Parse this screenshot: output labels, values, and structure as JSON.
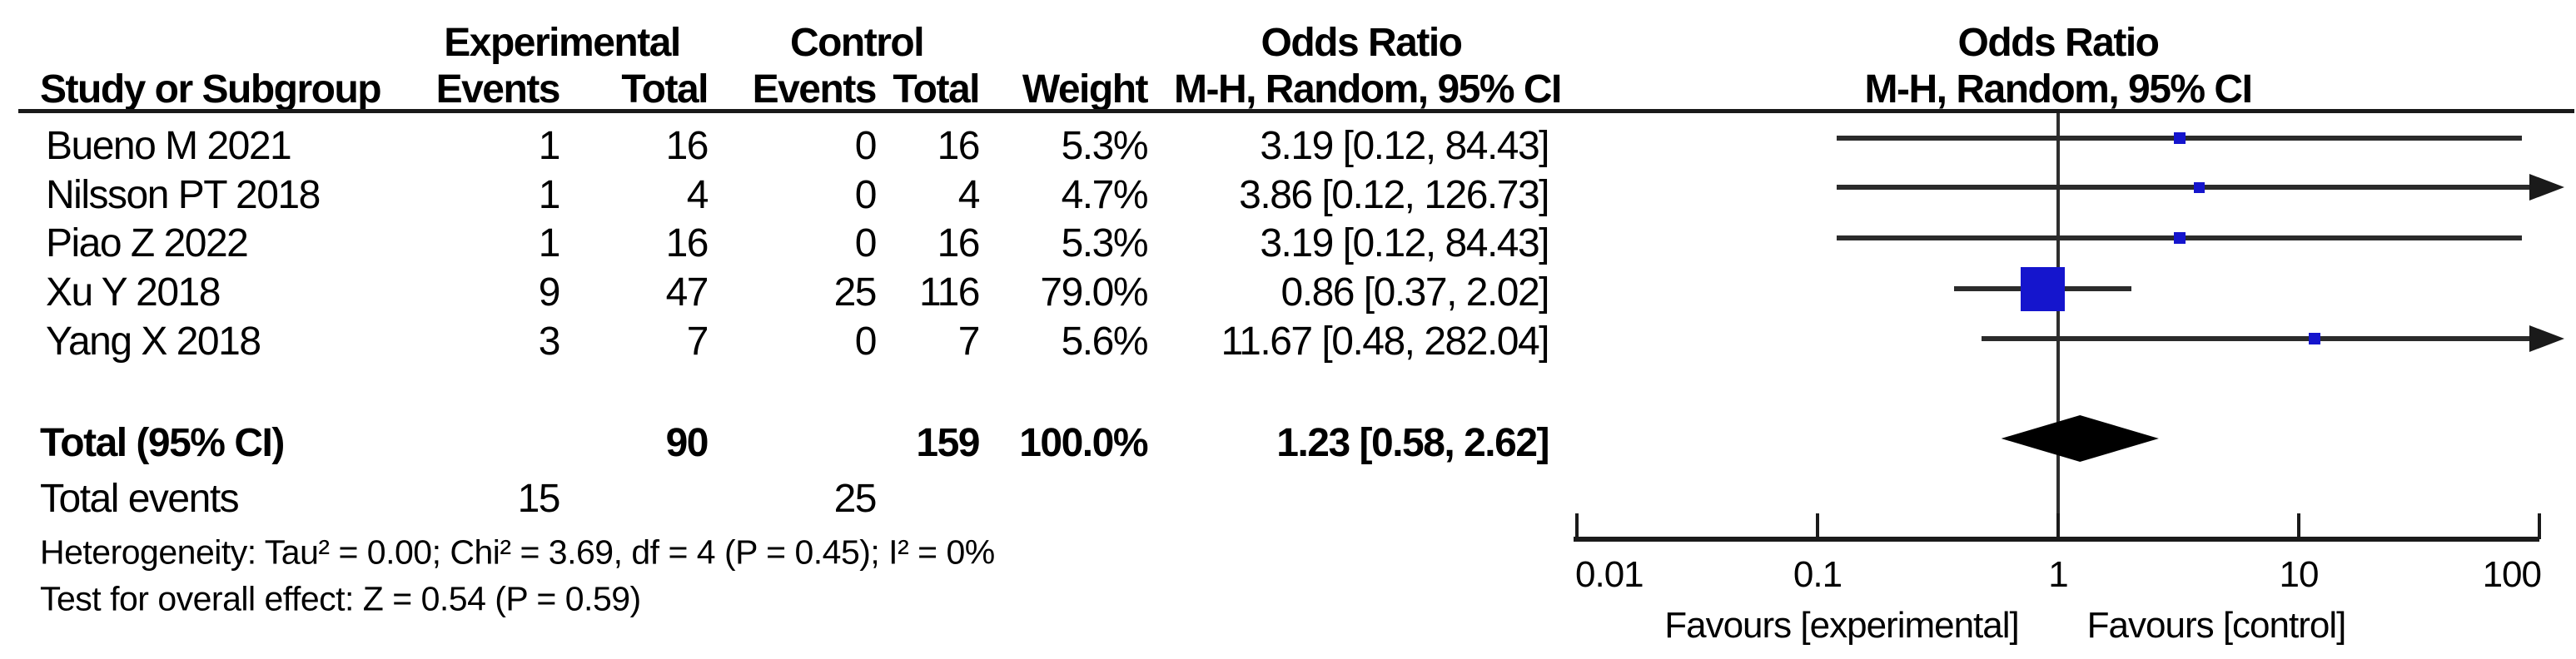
{
  "header": {
    "group_experimental": "Experimental",
    "group_control": "Control",
    "odds_ratio_table": "Odds Ratio",
    "odds_ratio_plot": "Odds Ratio",
    "study_or_subgroup": "Study or Subgroup",
    "events_experimental": "Events",
    "total_experimental": "Total",
    "events_control": "Events",
    "total_control": "Total",
    "weight": "Weight",
    "mh_random_ci_table": "M-H, Random, 95% CI",
    "mh_random_ci_plot": "M-H, Random, 95% CI"
  },
  "table": {
    "rows": [
      {
        "study": "Bueno M 2021",
        "events_exp": "1",
        "total_exp": "16",
        "events_ctrl": "0",
        "total_ctrl": "16",
        "weight": "5.3%",
        "or_ci": "3.19 [0.12, 84.43]"
      },
      {
        "study": "Nilsson PT 2018",
        "events_exp": "1",
        "total_exp": "4",
        "events_ctrl": "0",
        "total_ctrl": "4",
        "weight": "4.7%",
        "or_ci": "3.86 [0.12, 126.73]"
      },
      {
        "study": "Piao Z 2022",
        "events_exp": "1",
        "total_exp": "16",
        "events_ctrl": "0",
        "total_ctrl": "16",
        "weight": "5.3%",
        "or_ci": "3.19 [0.12, 84.43]"
      },
      {
        "study": "Xu Y 2018",
        "events_exp": "9",
        "total_exp": "47",
        "events_ctrl": "25",
        "total_ctrl": "116",
        "weight": "79.0%",
        "or_ci": "0.86 [0.37, 2.02]"
      },
      {
        "study": "Yang X 2018",
        "events_exp": "3",
        "total_exp": "7",
        "events_ctrl": "0",
        "total_ctrl": "7",
        "weight": "5.6%",
        "or_ci": "11.67 [0.48, 282.04]"
      }
    ],
    "total_row": {
      "label": "Total (95% CI)",
      "total_exp": "90",
      "total_ctrl": "159",
      "weight": "100.0%",
      "or_ci": "1.23 [0.58, 2.62]"
    },
    "total_events": {
      "label": "Total events",
      "exp": "15",
      "ctrl": "25"
    }
  },
  "footnotes": {
    "heterogeneity": "Heterogeneity: Tau² = 0.00; Chi² = 3.69, df = 4 (P = 0.45); I² = 0%",
    "overall_effect": "Test for overall effect: Z = 0.54 (P = 0.59)"
  },
  "axis": {
    "tick_labels": [
      "0.01",
      "0.1",
      "1",
      "10",
      "100"
    ],
    "favours_left": "Favours [experimental]",
    "favours_right": "Favours [control]"
  },
  "colors": {
    "marker_blue": "#1515CD",
    "ci_line": "#2B2B2B",
    "diamond": "#000000",
    "text": "#000000",
    "background": "#FFFFFF"
  },
  "chart_data": {
    "type": "scatter",
    "subtype": "forest_plot_meta_analysis",
    "effect_measure": "Odds Ratio",
    "model": "M-H, Random, 95% CI",
    "x_scale": "log10",
    "xlim": [
      0.01,
      100
    ],
    "x_ticks": [
      0.01,
      0.1,
      1,
      10,
      100
    ],
    "studies": [
      {
        "label": "Bueno M 2021",
        "or": 3.19,
        "ci_low": 0.12,
        "ci_high": 84.43,
        "weight_pct": 5.3
      },
      {
        "label": "Nilsson PT 2018",
        "or": 3.86,
        "ci_low": 0.12,
        "ci_high": 126.73,
        "weight_pct": 4.7
      },
      {
        "label": "Piao Z 2022",
        "or": 3.19,
        "ci_low": 0.12,
        "ci_high": 84.43,
        "weight_pct": 5.3
      },
      {
        "label": "Xu Y 2018",
        "or": 0.86,
        "ci_low": 0.37,
        "ci_high": 2.02,
        "weight_pct": 79.0
      },
      {
        "label": "Yang X 2018",
        "or": 11.67,
        "ci_low": 0.48,
        "ci_high": 282.04,
        "weight_pct": 5.6
      }
    ],
    "total": {
      "label": "Total (95% CI)",
      "or": 1.23,
      "ci_low": 0.58,
      "ci_high": 2.62,
      "weight_pct": 100.0
    },
    "totals": {
      "events_experimental": 15,
      "total_experimental": 90,
      "events_control": 25,
      "total_control": 159
    },
    "heterogeneity": {
      "tau2": 0.0,
      "chi2": 3.69,
      "df": 4,
      "p": 0.45,
      "i2_pct": 0
    },
    "overall_effect": {
      "z": 0.54,
      "p": 0.59
    },
    "legend_left": "Favours [experimental]",
    "legend_right": "Favours [control]"
  }
}
